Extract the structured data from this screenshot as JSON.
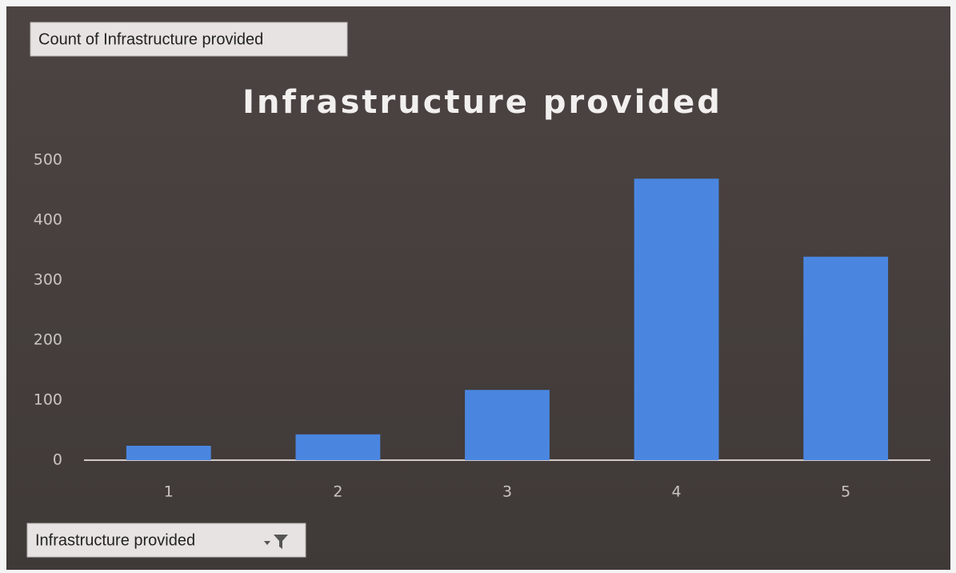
{
  "chart_data": {
    "type": "bar",
    "title": "Infrastructure provided",
    "value_field_button": "Count of Infrastructure provided",
    "axis_field_button": "Infrastructure provided",
    "categories": [
      "1",
      "2",
      "3",
      "4",
      "5"
    ],
    "values": [
      24,
      43,
      117,
      469,
      339
    ],
    "color": "#4a86e0",
    "ylim": [
      0,
      500
    ],
    "yticks": [
      0,
      100,
      200,
      300,
      400,
      500
    ],
    "grid": false
  }
}
